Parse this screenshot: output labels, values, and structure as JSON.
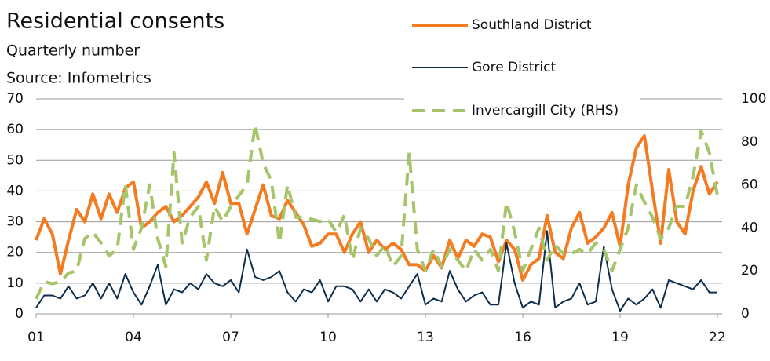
{
  "chart_data": {
    "type": "line",
    "title": "Residential consents",
    "subtitle": "Quarterly number",
    "source": "Source: Infometrics",
    "categories": [
      "01",
      null,
      null,
      null,
      null,
      null,
      null,
      null,
      null,
      null,
      null,
      null,
      "04",
      null,
      null,
      null,
      null,
      null,
      null,
      null,
      null,
      null,
      null,
      null,
      "07",
      null,
      null,
      null,
      null,
      null,
      null,
      null,
      null,
      null,
      null,
      null,
      "10",
      null,
      null,
      null,
      null,
      null,
      null,
      null,
      null,
      null,
      null,
      null,
      "13",
      null,
      null,
      null,
      null,
      null,
      null,
      null,
      null,
      null,
      null,
      null,
      "16",
      null,
      null,
      null,
      null,
      null,
      null,
      null,
      null,
      null,
      null,
      null,
      "19",
      null,
      null,
      null,
      null,
      null,
      null,
      null,
      null,
      null,
      null,
      null,
      "22"
    ],
    "series": [
      {
        "name": "Southland District",
        "color": "#f47b20",
        "style": "solid",
        "width": "thick",
        "values": [
          24,
          31,
          26,
          13,
          24,
          34,
          30,
          39,
          31,
          39,
          33,
          41,
          43,
          28,
          30,
          33,
          35,
          30,
          32,
          35,
          38,
          43,
          36,
          46,
          36,
          36,
          26,
          34,
          42,
          32,
          31,
          37,
          33,
          29,
          22,
          23,
          26,
          26,
          20,
          26,
          30,
          20,
          24,
          21,
          23,
          21,
          16,
          16,
          14,
          19,
          15,
          24,
          18,
          24,
          22,
          26,
          25,
          17,
          24,
          21,
          11,
          16,
          18,
          32,
          20,
          18,
          28,
          33,
          23,
          25,
          28,
          33,
          22,
          42,
          54,
          58,
          40,
          23,
          47,
          30,
          26,
          40,
          48,
          39,
          43
        ]
      },
      {
        "name": "Gore District",
        "color": "#0d2e4c",
        "style": "solid",
        "width": "thin",
        "values": [
          2,
          6,
          6,
          5,
          9,
          5,
          6,
          10,
          5,
          10,
          5,
          13,
          7,
          3,
          9,
          16,
          3,
          8,
          7,
          10,
          8,
          13,
          10,
          9,
          11,
          7,
          21,
          12,
          11,
          12,
          14,
          7,
          4,
          8,
          7,
          11,
          4,
          9,
          9,
          8,
          4,
          8,
          4,
          8,
          7,
          5,
          9,
          13,
          3,
          5,
          4,
          14,
          8,
          4,
          6,
          7,
          3,
          3,
          23,
          10,
          2,
          4,
          3,
          27,
          2,
          4,
          5,
          10,
          3,
          4,
          22,
          8,
          1,
          5,
          3,
          5,
          8,
          2,
          11,
          10,
          9,
          8,
          11,
          7,
          7
        ]
      },
      {
        "name": "Invercargill City (RHS)",
        "color": "#a6c56b",
        "style": "dashed",
        "width": "thick",
        "axis": "y2",
        "values": [
          7,
          15,
          14,
          15,
          19,
          20,
          35,
          38,
          33,
          27,
          30,
          60,
          30,
          40,
          60,
          35,
          22,
          75,
          33,
          45,
          50,
          25,
          50,
          43,
          50,
          55,
          60,
          88,
          70,
          62,
          33,
          60,
          45,
          45,
          44,
          43,
          44,
          38,
          46,
          25,
          40,
          35,
          27,
          32,
          22,
          27,
          75,
          30,
          20,
          30,
          22,
          30,
          25,
          20,
          30,
          25,
          30,
          20,
          52,
          38,
          20,
          30,
          40,
          25,
          32,
          28,
          28,
          30,
          28,
          33,
          30,
          20,
          30,
          40,
          60,
          52,
          45,
          35,
          40,
          50,
          50,
          64,
          85,
          75,
          55
        ]
      }
    ],
    "ylim": [
      0,
      70
    ],
    "yticks": [
      0,
      10,
      20,
      30,
      40,
      50,
      60,
      70
    ],
    "y2lim": [
      0,
      100
    ],
    "y2ticks": [
      0,
      20,
      40,
      60,
      80,
      100
    ],
    "grid": true,
    "legend": "top-right"
  }
}
